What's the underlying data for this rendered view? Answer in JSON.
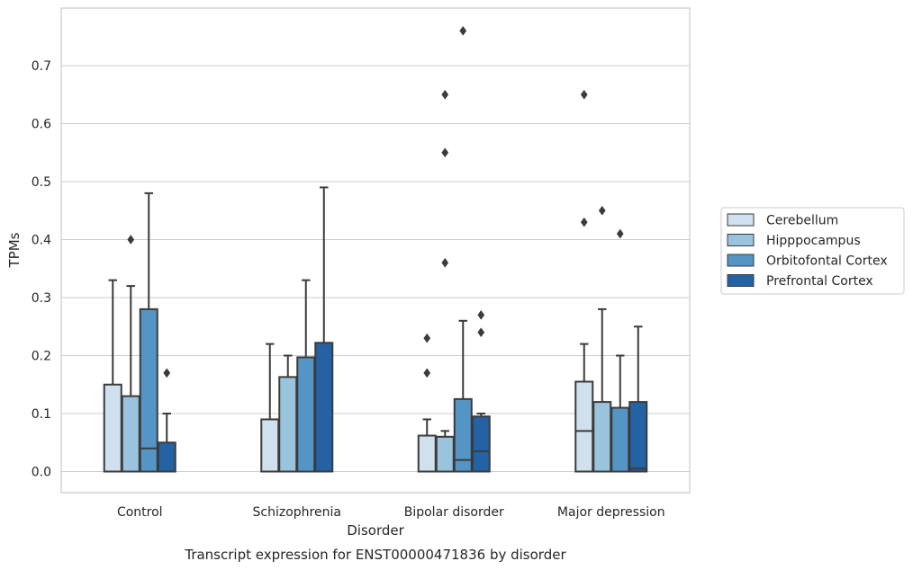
{
  "chart_data": {
    "type": "box",
    "caption": "Transcript expression for ENST00000471836 by disorder",
    "xlabel": "Disorder",
    "ylabel": "TPMs",
    "ylim": [
      -0.037,
      0.8
    ],
    "yticks": [
      0.0,
      0.1,
      0.2,
      0.3,
      0.4,
      0.5,
      0.6,
      0.7
    ],
    "ytick_labels": [
      "0.0",
      "0.1",
      "0.2",
      "0.3",
      "0.4",
      "0.5",
      "0.6",
      "0.7"
    ],
    "grid": true,
    "legend_position": "right",
    "categories": [
      "Control",
      "Schizophrenia",
      "Bipolar disorder",
      "Major depression"
    ],
    "series": [
      {
        "name": "Cerebellum",
        "color": "#d1e0ee",
        "boxes": [
          {
            "whisker_low": 0.0,
            "q1": 0.0,
            "median": 0.0,
            "q3": 0.15,
            "whisker_high": 0.33,
            "outliers": []
          },
          {
            "whisker_low": 0.0,
            "q1": 0.0,
            "median": 0.0,
            "q3": 0.09,
            "whisker_high": 0.22,
            "outliers": []
          },
          {
            "whisker_low": 0.0,
            "q1": 0.0,
            "median": 0.0,
            "q3": 0.062,
            "whisker_high": 0.09,
            "outliers": [
              0.17,
              0.23
            ]
          },
          {
            "whisker_low": 0.0,
            "q1": 0.0,
            "median": 0.07,
            "q3": 0.155,
            "whisker_high": 0.22,
            "outliers": [
              0.43,
              0.65
            ]
          }
        ]
      },
      {
        "name": "Hipppocampus",
        "color": "#9ac4de",
        "boxes": [
          {
            "whisker_low": 0.0,
            "q1": 0.0,
            "median": 0.0,
            "q3": 0.13,
            "whisker_high": 0.32,
            "outliers": [
              0.4
            ]
          },
          {
            "whisker_low": 0.0,
            "q1": 0.0,
            "median": 0.0,
            "q3": 0.163,
            "whisker_high": 0.2,
            "outliers": []
          },
          {
            "whisker_low": 0.0,
            "q1": 0.0,
            "median": 0.0,
            "q3": 0.06,
            "whisker_high": 0.07,
            "outliers": [
              0.36,
              0.55,
              0.65
            ]
          },
          {
            "whisker_low": 0.0,
            "q1": 0.0,
            "median": 0.0,
            "q3": 0.12,
            "whisker_high": 0.28,
            "outliers": [
              0.45
            ]
          }
        ]
      },
      {
        "name": "Orbitofontal Cortex",
        "color": "#5595c6",
        "boxes": [
          {
            "whisker_low": 0.0,
            "q1": 0.0,
            "median": 0.04,
            "q3": 0.28,
            "whisker_high": 0.48,
            "outliers": []
          },
          {
            "whisker_low": 0.0,
            "q1": 0.0,
            "median": 0.0,
            "q3": 0.197,
            "whisker_high": 0.33,
            "outliers": []
          },
          {
            "whisker_low": 0.0,
            "q1": 0.0,
            "median": 0.02,
            "q3": 0.125,
            "whisker_high": 0.26,
            "outliers": [
              0.76
            ]
          },
          {
            "whisker_low": 0.0,
            "q1": 0.0,
            "median": 0.0,
            "q3": 0.11,
            "whisker_high": 0.2,
            "outliers": [
              0.41
            ]
          }
        ]
      },
      {
        "name": "Prefrontal Cortex",
        "color": "#2462a3",
        "boxes": [
          {
            "whisker_low": 0.0,
            "q1": 0.0,
            "median": 0.0,
            "q3": 0.05,
            "whisker_high": 0.1,
            "outliers": [
              0.17
            ]
          },
          {
            "whisker_low": 0.0,
            "q1": 0.0,
            "median": 0.0,
            "q3": 0.222,
            "whisker_high": 0.49,
            "outliers": []
          },
          {
            "whisker_low": 0.0,
            "q1": 0.0,
            "median": 0.035,
            "q3": 0.095,
            "whisker_high": 0.1,
            "outliers": [
              0.24,
              0.27
            ]
          },
          {
            "whisker_low": 0.0,
            "q1": 0.0,
            "median": 0.005,
            "q3": 0.12,
            "whisker_high": 0.25,
            "outliers": []
          }
        ]
      }
    ]
  }
}
